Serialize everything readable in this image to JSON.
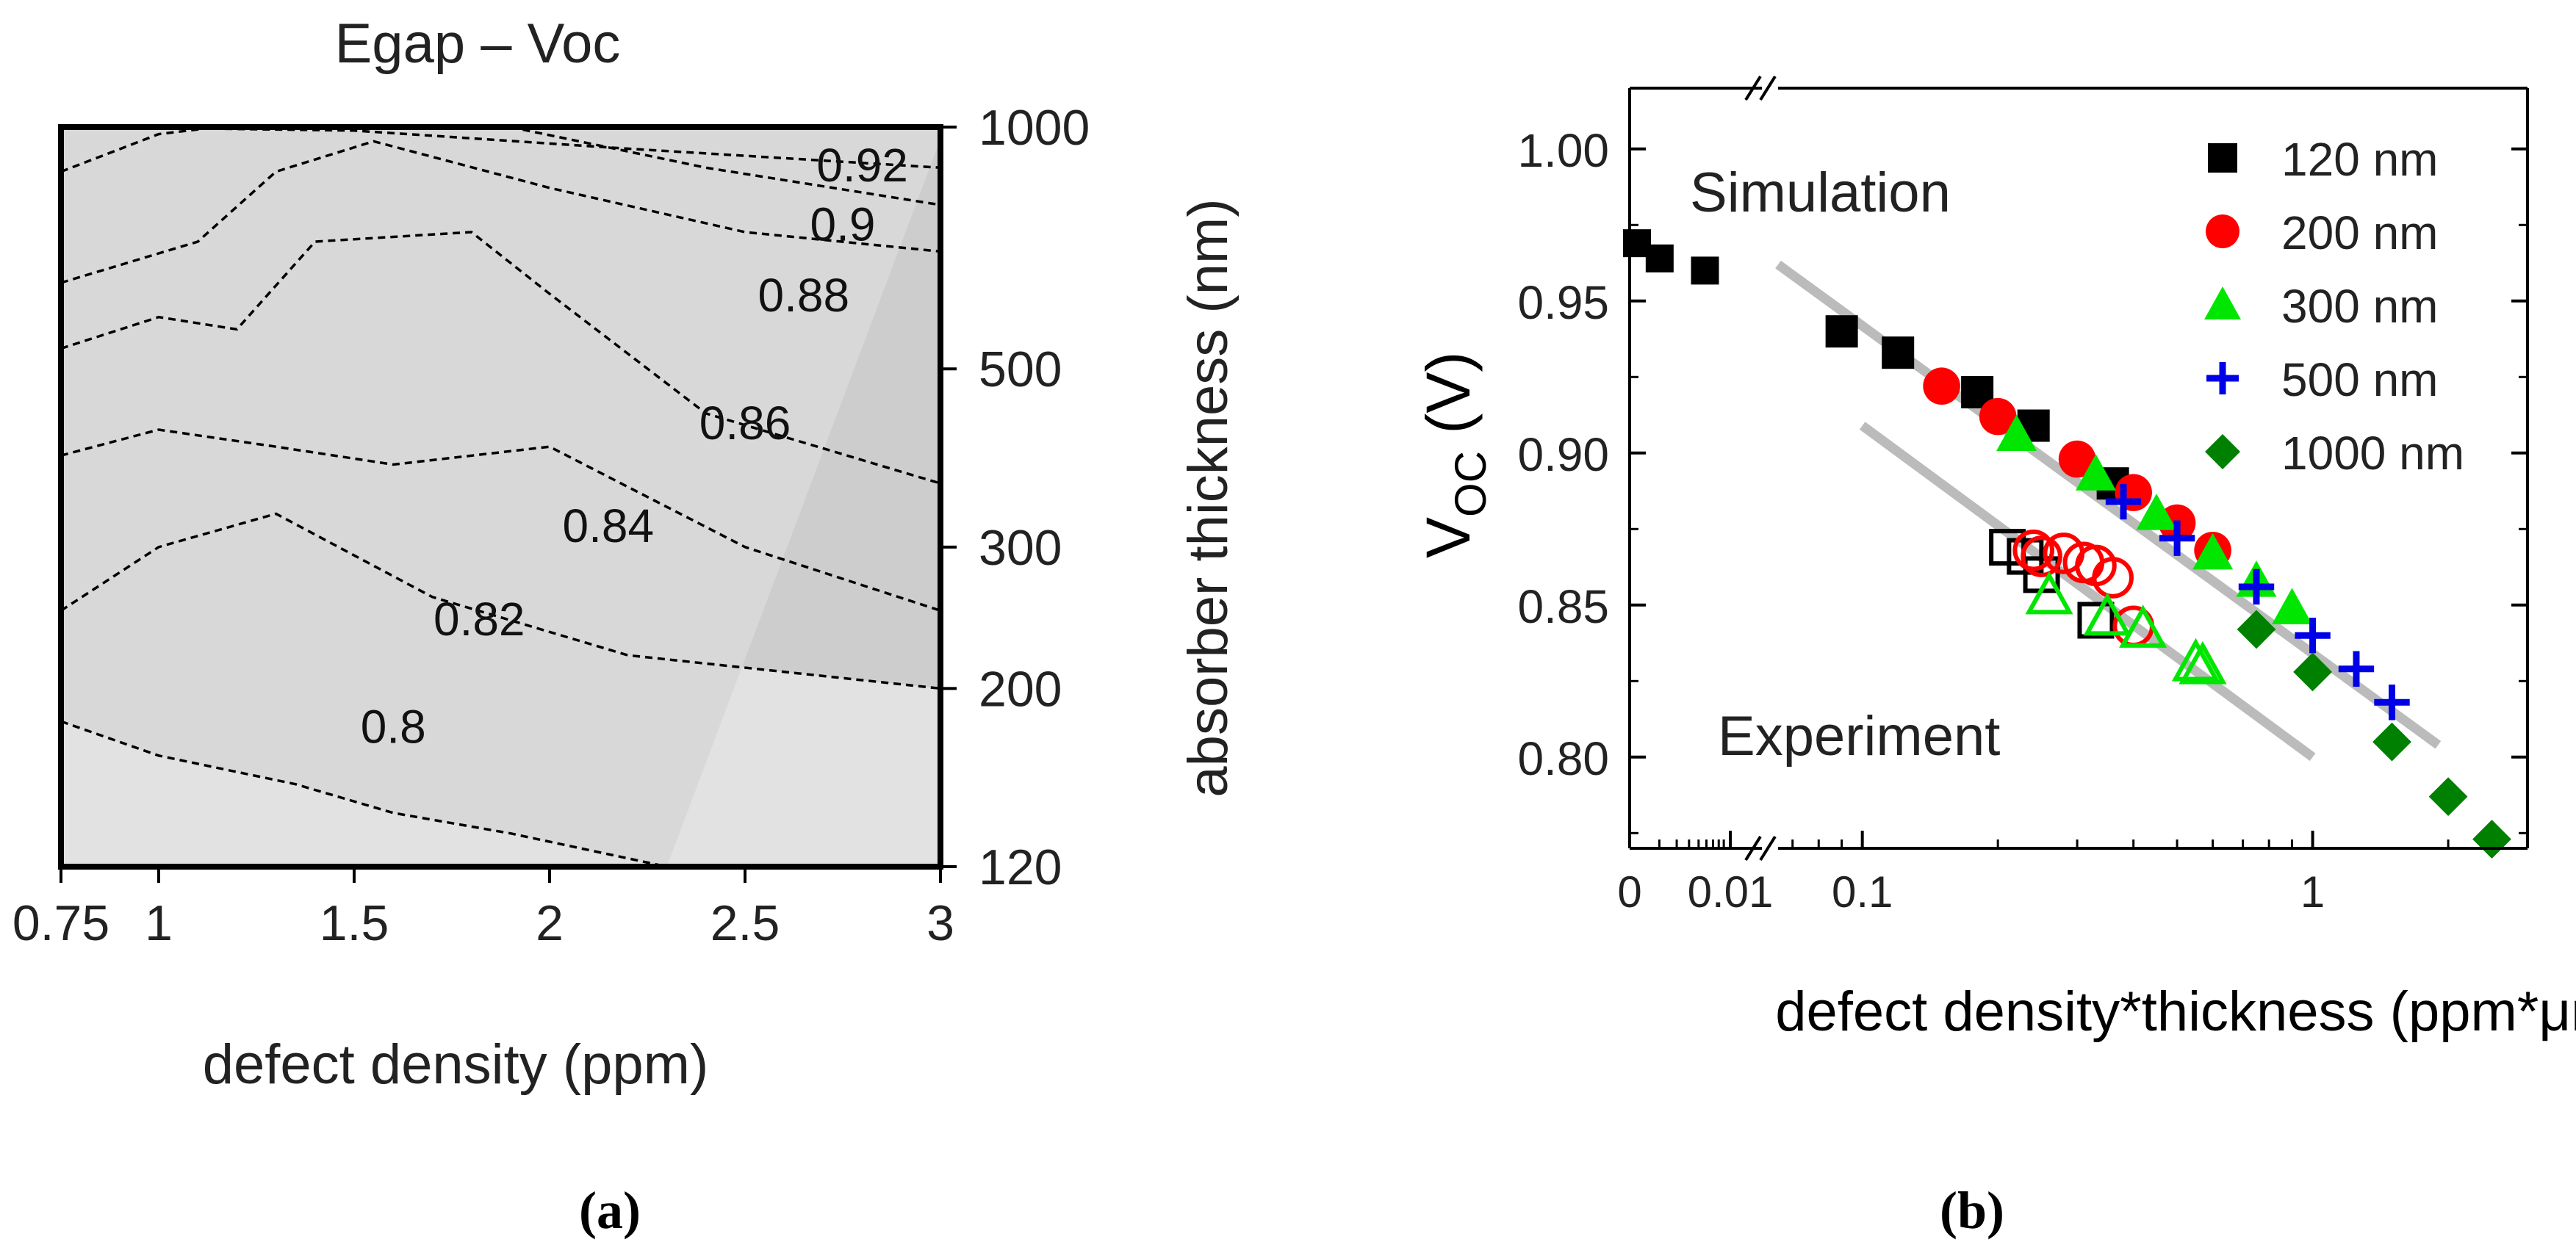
{
  "chart_data": [
    {
      "type": "heatmap",
      "panel_label": "(a)",
      "title": "Egap – Voc",
      "xlabel": "defect density (ppm)",
      "ylabel": "absorber thickness (nm)",
      "x_ticks": [
        "0.75",
        "1",
        "1.5",
        "2",
        "2.5",
        "3"
      ],
      "y_ticks": [
        "120",
        "200",
        "300",
        "500",
        "1000"
      ],
      "xlim": [
        0.75,
        3
      ],
      "ylim": [
        120,
        1000
      ],
      "contour_labels": [
        {
          "label": "0.92",
          "x": 2.8,
          "y": 900
        },
        {
          "label": "0.9",
          "x": 2.75,
          "y": 760
        },
        {
          "label": "0.88",
          "x": 2.65,
          "y": 620
        },
        {
          "label": "0.86",
          "x": 2.5,
          "y": 430
        },
        {
          "label": "0.84",
          "x": 2.15,
          "y": 320
        },
        {
          "label": "0.82",
          "x": 1.82,
          "y": 245
        },
        {
          "label": "0.8",
          "x": 1.6,
          "y": 180
        }
      ],
      "contours": [
        {
          "level": 0.92,
          "points": [
            [
              0.85,
              1000
            ],
            [
              1.5,
              990
            ],
            [
              2.2,
              940
            ],
            [
              3,
              890
            ]
          ]
        },
        {
          "level": 0.9,
          "points": [
            [
              0.75,
              880
            ],
            [
              1.0,
              980
            ],
            [
              1.15,
              1000
            ]
          ]
        },
        {
          "level": 0.9,
          "points": [
            [
              1.9,
              1000
            ],
            [
              2.4,
              890
            ],
            [
              3,
              800
            ]
          ]
        },
        {
          "level": 0.88,
          "points": [
            [
              0.75,
              640
            ],
            [
              1.1,
              720
            ],
            [
              1.3,
              880
            ],
            [
              1.55,
              960
            ],
            [
              2.0,
              840
            ],
            [
              2.5,
              740
            ],
            [
              3,
              700
            ]
          ]
        },
        {
          "level": 0.86,
          "points": [
            [
              0.75,
              530
            ],
            [
              1.0,
              580
            ],
            [
              1.2,
              560
            ],
            [
              1.4,
              720
            ],
            [
              1.8,
              740
            ],
            [
              2.0,
              620
            ],
            [
              2.4,
              440
            ],
            [
              3,
              360
            ]
          ]
        },
        {
          "level": 0.84,
          "points": [
            [
              0.75,
              390
            ],
            [
              1.0,
              420
            ],
            [
              1.3,
              400
            ],
            [
              1.6,
              380
            ],
            [
              2.0,
              400
            ],
            [
              2.5,
              300
            ],
            [
              3,
              250
            ]
          ]
        },
        {
          "level": 0.82,
          "points": [
            [
              0.75,
              250
            ],
            [
              1.0,
              300
            ],
            [
              1.3,
              330
            ],
            [
              1.7,
              260
            ],
            [
              2.2,
              220
            ],
            [
              3,
              200
            ]
          ]
        },
        {
          "level": 0.8,
          "points": [
            [
              0.75,
              182
            ],
            [
              1.0,
              165
            ],
            [
              1.35,
              152
            ],
            [
              1.6,
              140
            ],
            [
              1.9,
              132
            ],
            [
              2.3,
              120
            ]
          ]
        }
      ],
      "shading": [
        {
          "level": 0.79,
          "color": "#e2e2e2"
        },
        {
          "level": 0.8,
          "color": "#d8d8d8"
        },
        {
          "level": 0.82,
          "color": "#cdcdcd"
        },
        {
          "level": 0.84,
          "color": "#c1c1c1"
        },
        {
          "level": 0.86,
          "color": "#b3b3b3"
        },
        {
          "level": 0.88,
          "color": "#a5a5a5"
        },
        {
          "level": 0.9,
          "color": "#979797"
        },
        {
          "level": 0.92,
          "color": "#888888"
        }
      ]
    },
    {
      "type": "scatter",
      "panel_label": "(b)",
      "xlabel": "defect density*thickness (ppm*μm)",
      "ylabel_main": "V",
      "ylabel_sub": "OC",
      "ylabel_unit": " (V)",
      "x_scale": "log",
      "x_broken_axis": true,
      "x_ticks": [
        "0",
        "0.01",
        "0.1",
        "1"
      ],
      "ylim": [
        0.77,
        1.02
      ],
      "y_ticks": [
        "0.80",
        "0.85",
        "0.90",
        "0.95",
        "1.00"
      ],
      "legend_position": "top-right",
      "annotations": [
        "Simulation",
        "Experiment"
      ],
      "series": [
        {
          "name": "120 nm",
          "marker": "square",
          "color": "#000000",
          "filled": true,
          "x": [
            0.09,
            0.12,
            0.18,
            0.24,
            0.36
          ],
          "y": [
            0.94,
            0.933,
            0.92,
            0.909,
            0.89
          ]
        },
        {
          "name": "200 nm",
          "marker": "circle",
          "color": "#ff0000",
          "filled": true,
          "x": [
            0.15,
            0.2,
            0.3,
            0.4,
            0.5,
            0.6
          ],
          "y": [
            0.922,
            0.912,
            0.898,
            0.887,
            0.877,
            0.868
          ]
        },
        {
          "name": "300 nm",
          "marker": "triangle",
          "color": "#00e600",
          "filled": true,
          "x": [
            0.22,
            0.33,
            0.45,
            0.6,
            0.75,
            0.9
          ],
          "y": [
            0.906,
            0.893,
            0.88,
            0.867,
            0.858,
            0.849
          ]
        },
        {
          "name": "500 nm",
          "marker": "plus",
          "color": "#0000e6",
          "filled": true,
          "x": [
            0.38,
            0.5,
            0.75,
            1.0,
            1.25,
            1.5
          ],
          "y": [
            0.884,
            0.872,
            0.856,
            0.84,
            0.829,
            0.818
          ]
        },
        {
          "name": "1000 nm",
          "marker": "diamond",
          "color": "#008000",
          "filled": true,
          "x": [
            0.75,
            1.0,
            1.5,
            2.0,
            2.5
          ],
          "y": [
            0.842,
            0.828,
            0.805,
            0.787,
            0.773
          ]
        }
      ],
      "simulation_near_zero": {
        "marker": "square",
        "color": "#000000",
        "points": [
          [
            0.0,
            0.969
          ],
          [
            0.002,
            0.964
          ],
          [
            0.006,
            0.96
          ]
        ]
      },
      "experiment_series": [
        {
          "marker": "square",
          "color": "#000000",
          "filled": false,
          "x": [
            0.21,
            0.23,
            0.25,
            0.33
          ],
          "y": [
            0.869,
            0.866,
            0.86,
            0.845
          ]
        },
        {
          "marker": "circle",
          "color": "#ff0000",
          "filled": false,
          "x": [
            0.24,
            0.25,
            0.28,
            0.31,
            0.33,
            0.36,
            0.4
          ],
          "y": [
            0.868,
            0.866,
            0.867,
            0.864,
            0.863,
            0.859,
            0.843
          ]
        },
        {
          "marker": "triangle",
          "color": "#00e600",
          "filled": false,
          "x": [
            0.26,
            0.35,
            0.42,
            0.55,
            0.57
          ],
          "y": [
            0.853,
            0.846,
            0.842,
            0.831,
            0.83
          ]
        }
      ],
      "trend_lines": [
        {
          "name": "Simulation",
          "color": "#bbbbbb",
          "x": [
            0.065,
            1.9
          ],
          "y": [
            0.962,
            0.804
          ]
        },
        {
          "name": "Experiment",
          "color": "#bbbbbb",
          "x": [
            0.1,
            1.0
          ],
          "y": [
            0.909,
            0.8
          ]
        }
      ]
    }
  ]
}
